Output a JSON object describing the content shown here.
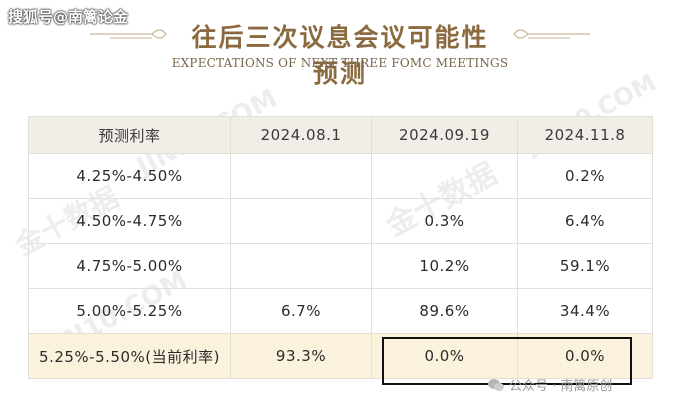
{
  "source_tag": "搜狐号@南篱论金",
  "title": "往后三次议息会议可能性预测",
  "subtitle": "EXPECTATIONS OF NEXT THREE FOMC MEETINGS",
  "watermarks": [
    "JIN10.COM",
    "金十数据",
    "JIN10.COM",
    "金十数据",
    "JIN10.COM"
  ],
  "table": {
    "headers": [
      "预测利率",
      "2024.08.1",
      "2024.09.19",
      "2024.11.8"
    ],
    "rows": [
      {
        "cells": [
          "4.25%-4.50%",
          "",
          "",
          "0.2%"
        ]
      },
      {
        "cells": [
          "4.50%-4.75%",
          "",
          "0.3%",
          "6.4%"
        ]
      },
      {
        "cells": [
          "4.75%-5.00%",
          "",
          "10.2%",
          "59.1%"
        ]
      },
      {
        "cells": [
          "5.00%-5.25%",
          "6.7%",
          "89.6%",
          "34.4%"
        ]
      },
      {
        "cells": [
          "5.25%-5.50%(当前利率)",
          "93.3%",
          "0.0%",
          "0.0%"
        ],
        "highlight": true
      }
    ]
  },
  "footer": "公众号 · 南篱原创",
  "colors": {
    "title": "#8a6a3e",
    "header_bg": "#f1ede7",
    "highlight_bg": "#fbf2dd",
    "box": "#111111"
  }
}
